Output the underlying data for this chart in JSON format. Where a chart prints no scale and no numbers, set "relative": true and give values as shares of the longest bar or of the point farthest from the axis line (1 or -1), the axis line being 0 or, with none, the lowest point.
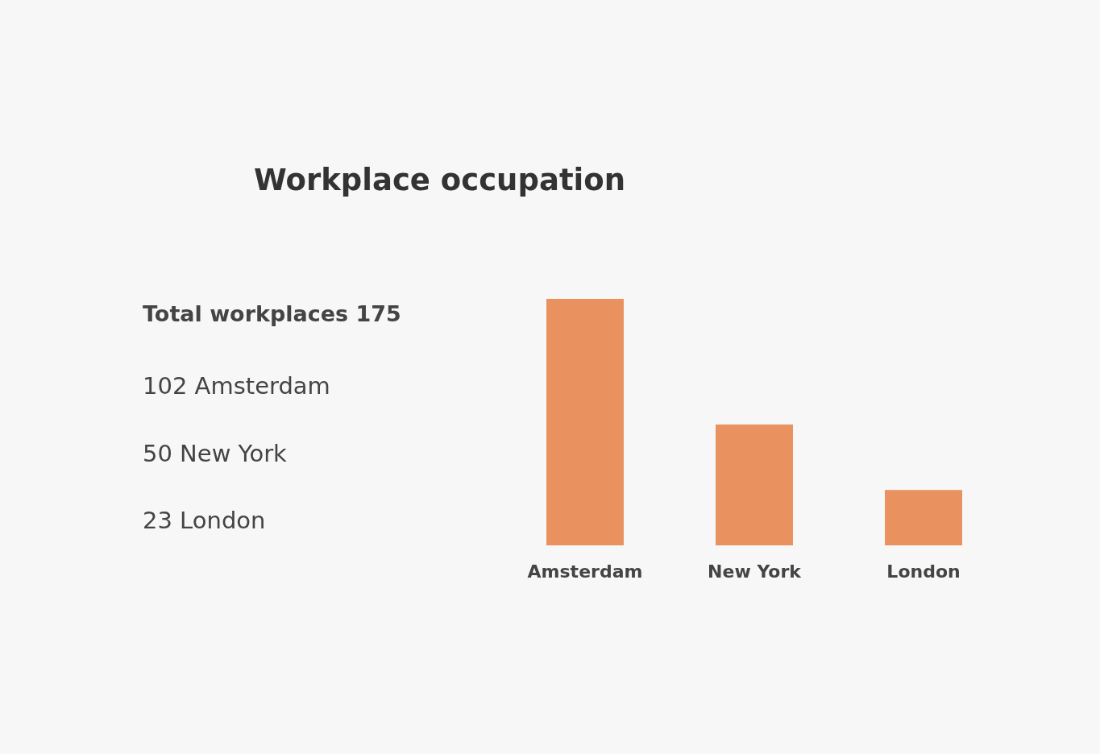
{
  "chart_data": {
    "type": "bar",
    "title": "Workplace occupation",
    "annotations": [
      "Total workplaces 175",
      "102 Amsterdam",
      "50 New York",
      "23 London"
    ],
    "categories": [
      "Amsterdam",
      "New York",
      "London"
    ],
    "values": [
      1,
      0.49,
      0.225
    ],
    "relative": true,
    "color": "#e9925f"
  }
}
